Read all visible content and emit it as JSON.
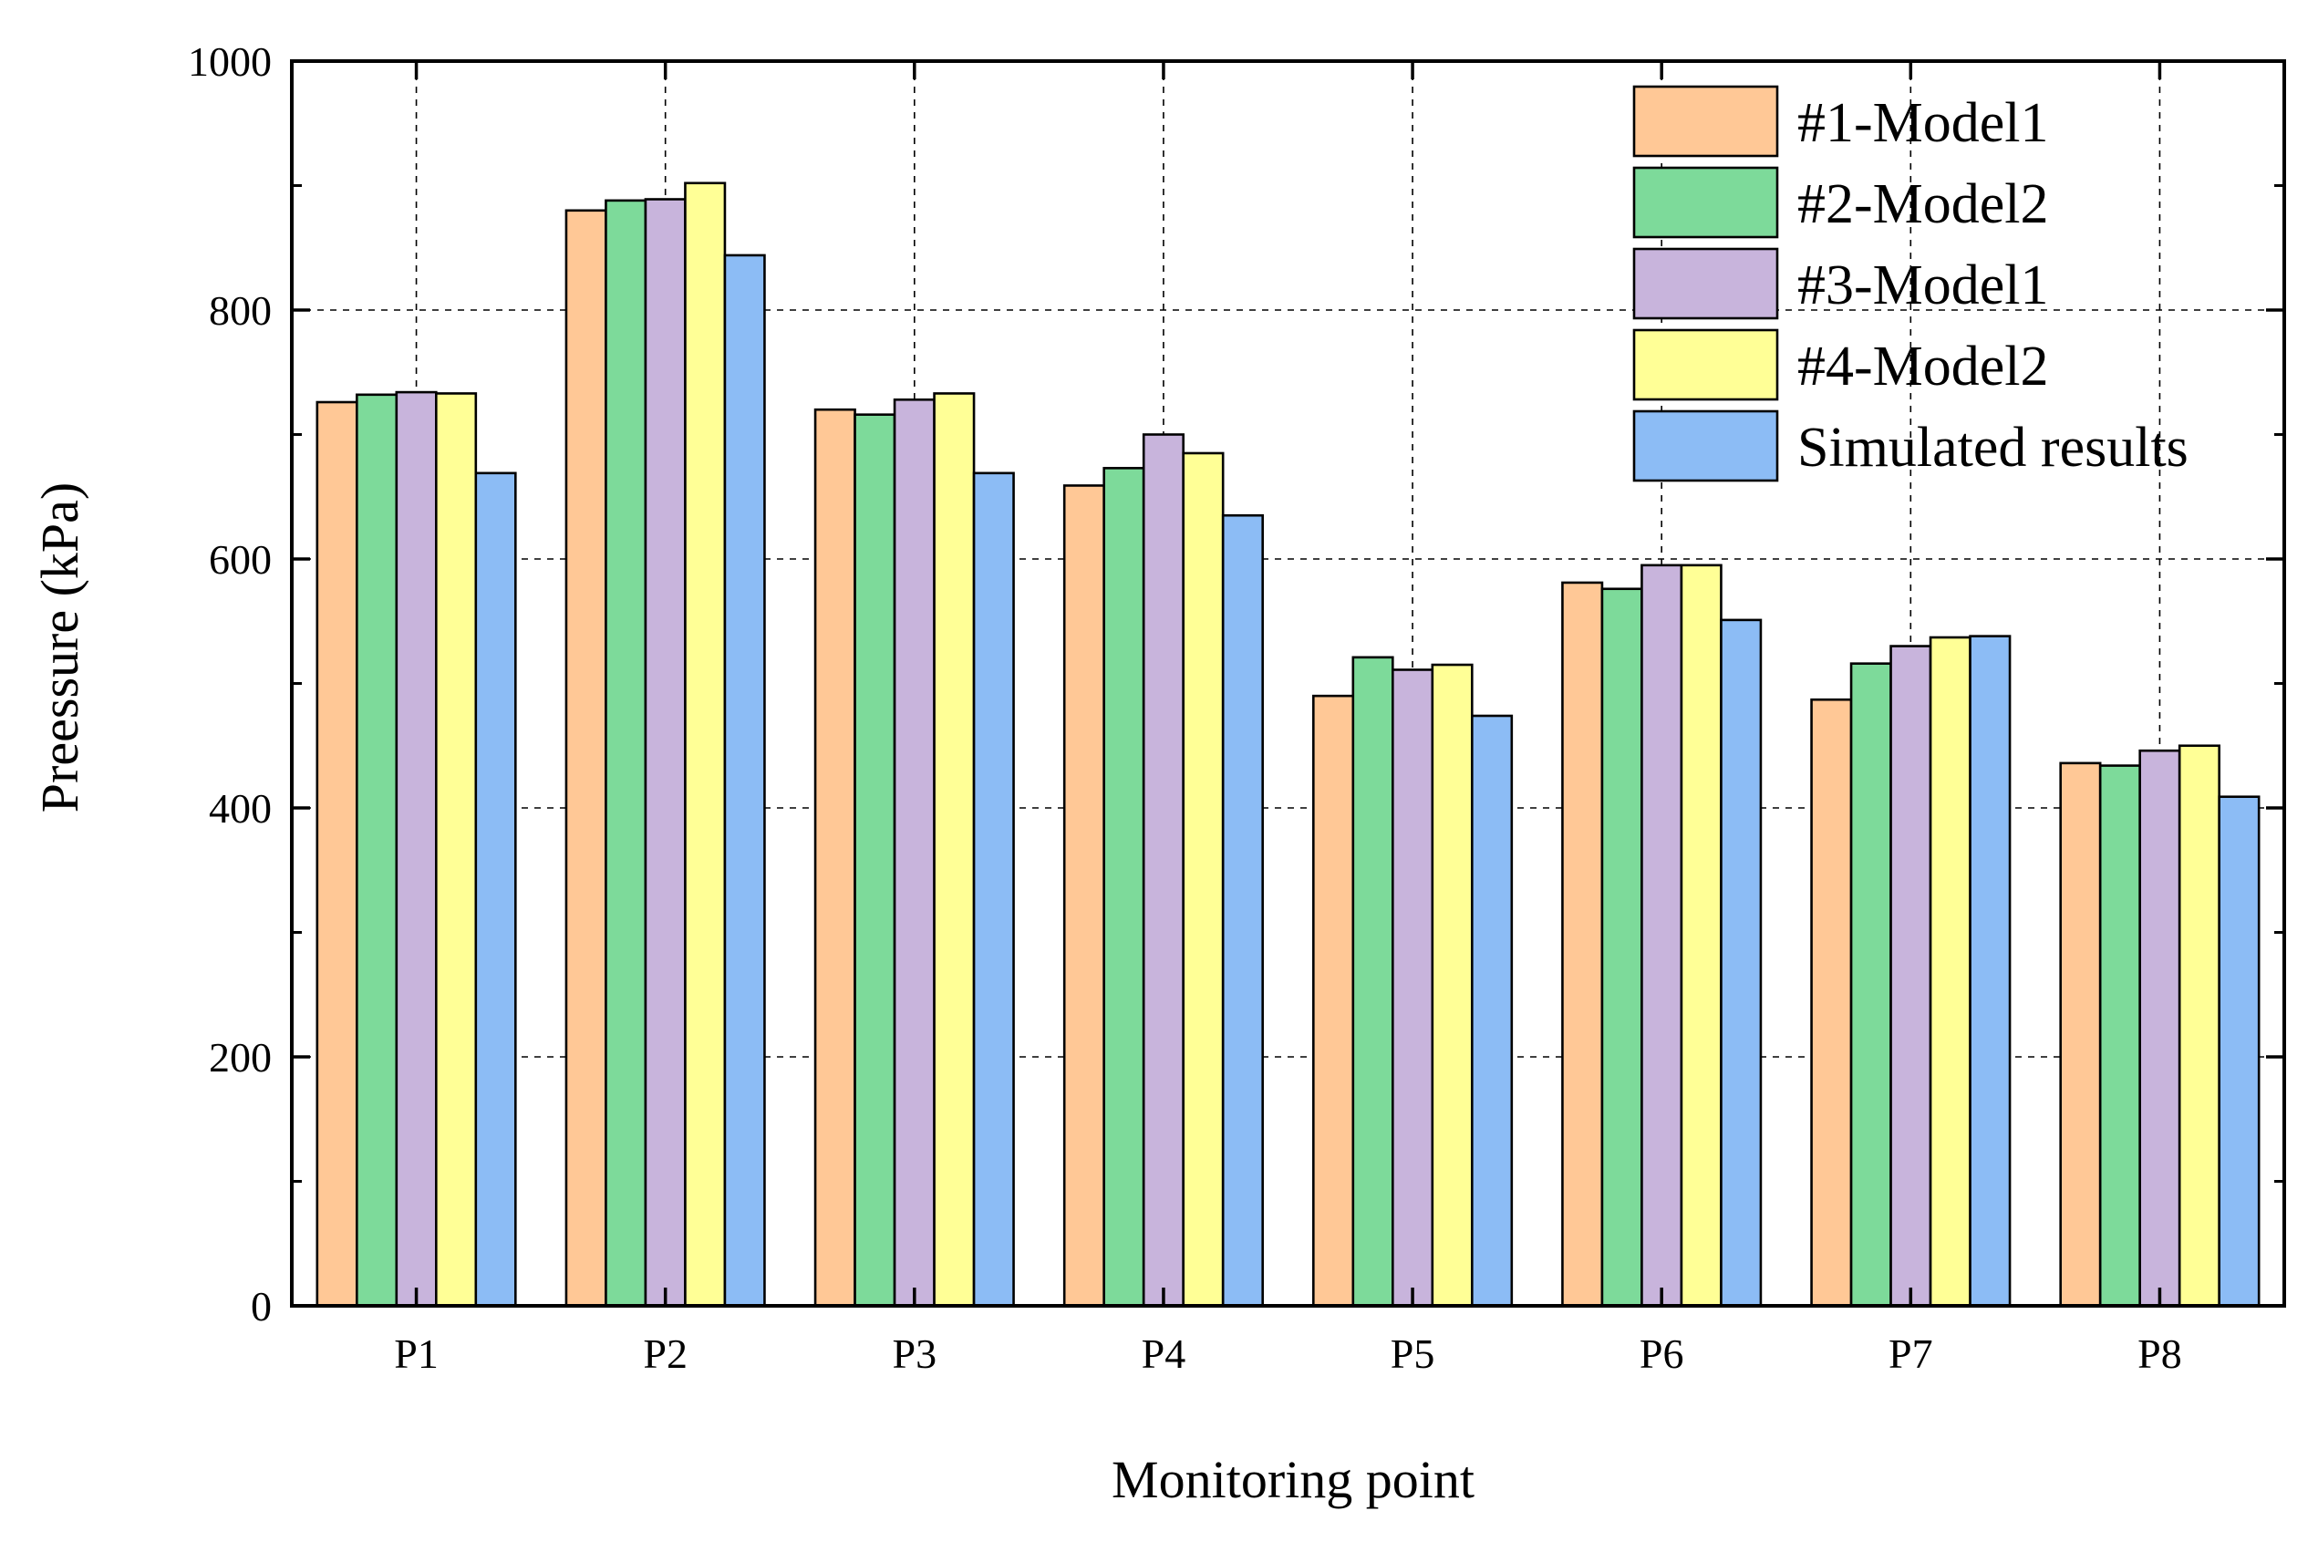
{
  "chart_data": {
    "type": "bar",
    "title": "",
    "xlabel": "Monitoring point",
    "ylabel": "Preessure (kPa)",
    "ylim": [
      0,
      1000
    ],
    "yticks": [
      0,
      200,
      400,
      600,
      800,
      1000
    ],
    "grid": true,
    "legend_position": "top-right",
    "categories": [
      "P1",
      "P2",
      "P3",
      "P4",
      "P5",
      "P6",
      "P7",
      "P8"
    ],
    "series": [
      {
        "name": "#1-Model1",
        "color": "#FFC896",
        "values": [
          726,
          880,
          720,
          659,
          490,
          581,
          487,
          436
        ]
      },
      {
        "name": "#2-Model2",
        "color": "#7DDA9A",
        "values": [
          732,
          888,
          716,
          673,
          521,
          576,
          516,
          434
        ]
      },
      {
        "name": "#3-Model1",
        "color": "#C8B4DC",
        "values": [
          734,
          889,
          728,
          700,
          511,
          595,
          530,
          446
        ]
      },
      {
        "name": "#4-Model2",
        "color": "#FFFF96",
        "values": [
          733,
          902,
          733,
          685,
          515,
          595,
          537,
          450
        ]
      },
      {
        "name": "Simulated results",
        "color": "#8CBCF5",
        "values": [
          669,
          844,
          669,
          635,
          474,
          551,
          538,
          409
        ]
      }
    ]
  }
}
